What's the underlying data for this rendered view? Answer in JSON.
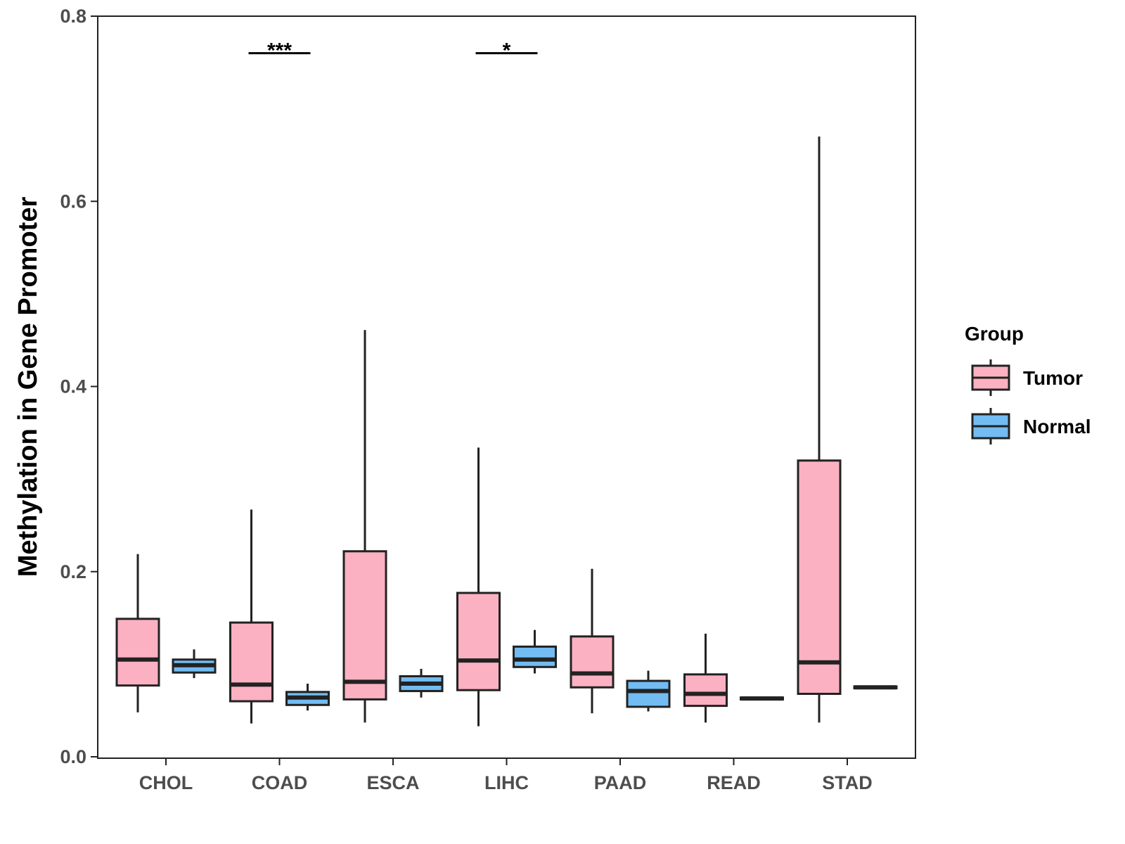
{
  "chart_data": {
    "type": "boxplot",
    "title": "",
    "xlabel": "",
    "ylabel": "Methylation in Gene Promoter",
    "ylim": [
      0,
      0.8
    ],
    "yticks": [
      "0.0",
      "0.2",
      "0.4",
      "0.6",
      "0.8"
    ],
    "grid": false,
    "legend": {
      "title": "Group",
      "position": "right",
      "entries": [
        {
          "name": "Tumor",
          "color": "#FBB1C2"
        },
        {
          "name": "Normal",
          "color": "#72BCF3"
        }
      ]
    },
    "categories": [
      "CHOL",
      "COAD",
      "ESCA",
      "LIHC",
      "PAAD",
      "READ",
      "STAD"
    ],
    "series": [
      {
        "name": "Tumor",
        "color": "#FBB1C2",
        "boxes": [
          {
            "min": 0.048,
            "q1": 0.077,
            "median": 0.105,
            "q3": 0.149,
            "max": 0.219
          },
          {
            "min": 0.036,
            "q1": 0.06,
            "median": 0.078,
            "q3": 0.145,
            "max": 0.267
          },
          {
            "min": 0.037,
            "q1": 0.062,
            "median": 0.081,
            "q3": 0.222,
            "max": 0.461
          },
          {
            "min": 0.033,
            "q1": 0.072,
            "median": 0.104,
            "q3": 0.177,
            "max": 0.334
          },
          {
            "min": 0.047,
            "q1": 0.075,
            "median": 0.09,
            "q3": 0.13,
            "max": 0.203
          },
          {
            "min": 0.037,
            "q1": 0.055,
            "median": 0.068,
            "q3": 0.089,
            "max": 0.133
          },
          {
            "min": 0.037,
            "q1": 0.068,
            "median": 0.102,
            "q3": 0.32,
            "max": 0.67
          }
        ]
      },
      {
        "name": "Normal",
        "color": "#72BCF3",
        "boxes": [
          {
            "min": 0.085,
            "q1": 0.091,
            "median": 0.099,
            "q3": 0.105,
            "max": 0.116
          },
          {
            "min": 0.05,
            "q1": 0.056,
            "median": 0.064,
            "q3": 0.07,
            "max": 0.079
          },
          {
            "min": 0.064,
            "q1": 0.071,
            "median": 0.079,
            "q3": 0.087,
            "max": 0.095
          },
          {
            "min": 0.09,
            "q1": 0.097,
            "median": 0.105,
            "q3": 0.119,
            "max": 0.137
          },
          {
            "min": 0.049,
            "q1": 0.054,
            "median": 0.071,
            "q3": 0.082,
            "max": 0.093
          },
          {
            "min": 0.061,
            "q1": 0.062,
            "median": 0.063,
            "q3": 0.064,
            "max": 0.065
          },
          {
            "min": 0.073,
            "q1": 0.074,
            "median": 0.075,
            "q3": 0.076,
            "max": 0.077
          }
        ]
      }
    ],
    "annotations": [
      {
        "category": "COAD",
        "label": "***",
        "y": 0.76
      },
      {
        "category": "LIHC",
        "label": "*",
        "y": 0.76
      }
    ]
  }
}
